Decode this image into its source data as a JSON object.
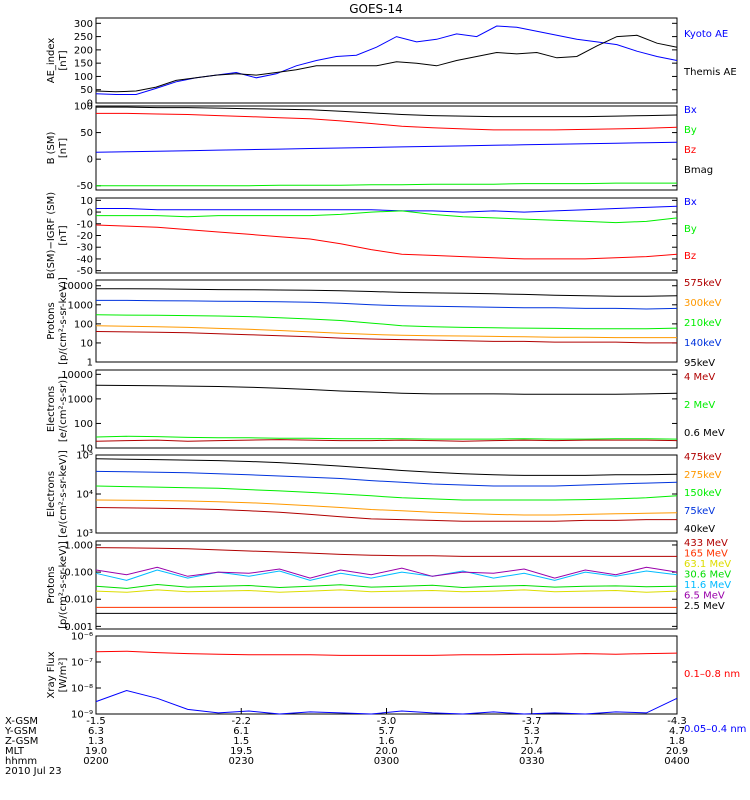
{
  "title": "GOES-14",
  "date_label": "2010 Jul 23",
  "colors": {
    "black": "#000000",
    "blue": "#0000ff",
    "red": "#ff0000",
    "green": "#00ee00",
    "darkred": "#b00000",
    "orange": "#ff9900",
    "yellow": "#dddd00",
    "lightgreen": "#00dd00",
    "cyan": "#00bbff",
    "purple": "#9900aa",
    "darkblue": "#0033dd"
  },
  "chart_data": [
    {
      "type": "line",
      "ylabel": "AE_index",
      "yunit": "[nT]",
      "ylim": [
        0,
        320
      ],
      "scale": "linear",
      "yticks": [
        0,
        50,
        100,
        150,
        200,
        250,
        300
      ],
      "yticklabels": [
        "0",
        "50",
        "100",
        "150",
        "200",
        "250",
        "300"
      ],
      "series": [
        {
          "name": "Kyoto AE",
          "color": "#0000ff",
          "values": [
            35,
            32,
            32,
            55,
            80,
            95,
            105,
            115,
            95,
            110,
            140,
            160,
            175,
            180,
            210,
            250,
            230,
            240,
            260,
            250,
            290,
            285,
            270,
            255,
            240,
            230,
            220,
            195,
            175,
            160
          ]
        },
        {
          "name": "Themis AE",
          "color": "#000000",
          "values": [
            45,
            42,
            45,
            60,
            85,
            95,
            105,
            110,
            105,
            115,
            125,
            140,
            140,
            140,
            140,
            155,
            150,
            140,
            160,
            175,
            190,
            185,
            190,
            170,
            175,
            215,
            250,
            255,
            225,
            210
          ]
        }
      ]
    },
    {
      "type": "line",
      "ylabel": "B (SM)",
      "yunit": "[nT]",
      "ylim": [
        -58,
        100
      ],
      "scale": "linear",
      "yticks": [
        -50,
        0,
        50,
        100
      ],
      "yticklabels": [
        "-50",
        "0",
        "50",
        "100"
      ],
      "series": [
        {
          "name": "Bx",
          "color": "#0000ff",
          "values": [
            13,
            14,
            15,
            16,
            17,
            18,
            19,
            20,
            21,
            22,
            23,
            24,
            25,
            26,
            27,
            28,
            29,
            30,
            31,
            32
          ]
        },
        {
          "name": "By",
          "color": "#00ee00",
          "values": [
            -50,
            -50,
            -50,
            -50,
            -50,
            -50,
            -49,
            -49,
            -49,
            -48,
            -48,
            -47,
            -47,
            -47,
            -46,
            -46,
            -46,
            -45,
            -45,
            -45
          ]
        },
        {
          "name": "Bz",
          "color": "#ff0000",
          "values": [
            86,
            86,
            85,
            84,
            82,
            80,
            78,
            76,
            72,
            67,
            62,
            59,
            57,
            55,
            55,
            55,
            56,
            57,
            58,
            60
          ]
        },
        {
          "name": "Bmag",
          "color": "#000000",
          "values": [
            98,
            98,
            97,
            97,
            96,
            95,
            94,
            93,
            90,
            87,
            84,
            82,
            81,
            80,
            80,
            80,
            80,
            81,
            82,
            83
          ]
        }
      ]
    },
    {
      "type": "line",
      "ylabel": "B(SM)−IGRF (SM)",
      "yunit": "[nT]",
      "ylim": [
        -52,
        12
      ],
      "scale": "linear",
      "yticks": [
        -50,
        -40,
        -30,
        -20,
        -10,
        0,
        10
      ],
      "yticklabels": [
        "-50",
        "-40",
        "-30",
        "-20",
        "-10",
        "0",
        "10"
      ],
      "series": [
        {
          "name": "Bx",
          "color": "#0000ff",
          "values": [
            3,
            3,
            2,
            2,
            2,
            2,
            2,
            2,
            2,
            2,
            1,
            1,
            0,
            1,
            0,
            1,
            2,
            3,
            4,
            5
          ]
        },
        {
          "name": "By",
          "color": "#00ee00",
          "values": [
            -3,
            -3,
            -3,
            -4,
            -3,
            -3,
            -3,
            -3,
            -2,
            0,
            1,
            -2,
            -4,
            -5,
            -6,
            -7,
            -8,
            -9,
            -8,
            -5
          ]
        },
        {
          "name": "Bz",
          "color": "#ff0000",
          "values": [
            -11,
            -12,
            -13,
            -15,
            -17,
            -19,
            -21,
            -23,
            -27,
            -32,
            -36,
            -37,
            -38,
            -39,
            -40,
            -40,
            -40,
            -39,
            -38,
            -36
          ]
        }
      ]
    },
    {
      "type": "line",
      "ylabel": "Protons",
      "yunit": "[p/(cm²-s-sr-keV)]",
      "ylim": [
        1,
        20000
      ],
      "scale": "log",
      "yticks": [
        1,
        10,
        100,
        1000,
        10000
      ],
      "yticklabels": [
        "1",
        "10",
        "100",
        "1000",
        "10000"
      ],
      "series": [
        {
          "name": "575keV",
          "color": "#b00000",
          "values": [
            40,
            38,
            36,
            34,
            30,
            27,
            24,
            21,
            18,
            16,
            15,
            14,
            13,
            12,
            12,
            11,
            11,
            11,
            10,
            10
          ]
        },
        {
          "name": "300keV",
          "color": "#ff9900",
          "values": [
            80,
            75,
            70,
            65,
            58,
            52,
            45,
            38,
            32,
            28,
            25,
            24,
            23,
            22,
            21,
            20,
            20,
            19,
            19,
            19
          ]
        },
        {
          "name": "210keV",
          "color": "#00ee00",
          "values": [
            300,
            290,
            280,
            270,
            260,
            240,
            210,
            180,
            150,
            110,
            80,
            70,
            65,
            62,
            60,
            58,
            56,
            55,
            55,
            60
          ]
        },
        {
          "name": "140keV",
          "color": "#0033dd",
          "values": [
            1700,
            1700,
            1650,
            1600,
            1550,
            1500,
            1450,
            1350,
            1200,
            1000,
            900,
            850,
            800,
            750,
            700,
            700,
            650,
            650,
            600,
            650
          ]
        },
        {
          "name": "95keV",
          "color": "#000000",
          "values": [
            7000,
            7000,
            6800,
            6500,
            6300,
            6200,
            6000,
            5800,
            5500,
            5000,
            4500,
            4200,
            4000,
            3800,
            3500,
            3200,
            3000,
            2800,
            2800,
            3000
          ]
        }
      ]
    },
    {
      "type": "line",
      "ylabel": "Electrons",
      "yunit": "[e/(cm²-s-sr)]",
      "ylim": [
        10,
        15000
      ],
      "scale": "log",
      "yticks": [
        10,
        100,
        1000,
        10000
      ],
      "yticklabels": [
        "10",
        "100",
        "1000",
        "10000"
      ],
      "series": [
        {
          "name": "4 MeV",
          "color": "#b00000",
          "values": [
            19,
            20,
            21,
            19,
            20,
            21,
            22,
            21,
            20,
            20,
            21,
            20,
            19,
            20,
            21,
            20,
            21,
            21,
            21,
            20
          ]
        },
        {
          "name": "2 MeV",
          "color": "#00ee00",
          "values": [
            28,
            30,
            29,
            27,
            26,
            26,
            25,
            25,
            24,
            24,
            24,
            23,
            23,
            23,
            24,
            23,
            23,
            24,
            24,
            23
          ]
        },
        {
          "name": "0.6 MeV",
          "color": "#000000",
          "values": [
            3600,
            3500,
            3400,
            3300,
            3200,
            3000,
            2700,
            2400,
            2100,
            1900,
            1700,
            1600,
            1600,
            1600,
            1550,
            1550,
            1550,
            1550,
            1600,
            1700
          ]
        }
      ]
    },
    {
      "type": "line",
      "ylabel": "Electrons",
      "yunit": "[e/(cm²-s-sr-keV)]",
      "ylim": [
        1000,
        100000
      ],
      "scale": "log",
      "yticks": [
        1000,
        10000,
        100000
      ],
      "yticklabels": [
        "10³",
        "10⁴",
        "10⁵"
      ],
      "series": [
        {
          "name": "475keV",
          "color": "#b00000",
          "values": [
            4500,
            4400,
            4300,
            4200,
            4000,
            3700,
            3400,
            3000,
            2600,
            2300,
            2200,
            2100,
            2000,
            2000,
            2000,
            2000,
            2100,
            2100,
            2200,
            2200
          ]
        },
        {
          "name": "275keV",
          "color": "#ff9900",
          "values": [
            7000,
            6900,
            6800,
            6600,
            6300,
            6000,
            5500,
            5000,
            4500,
            4000,
            3700,
            3400,
            3200,
            3000,
            2900,
            2900,
            3000,
            3100,
            3200,
            3300
          ]
        },
        {
          "name": "150keV",
          "color": "#00ee00",
          "values": [
            16000,
            15500,
            15000,
            14500,
            14000,
            13000,
            12000,
            11000,
            10000,
            9000,
            8000,
            7500,
            7000,
            7000,
            7000,
            7000,
            7200,
            7500,
            8000,
            9000
          ]
        },
        {
          "name": "75keV",
          "color": "#0033dd",
          "values": [
            38000,
            37000,
            36000,
            35000,
            33000,
            31000,
            29000,
            27000,
            25000,
            22000,
            20000,
            18000,
            17000,
            16000,
            16000,
            16000,
            17000,
            18000,
            19000,
            20000
          ]
        },
        {
          "name": "40keV",
          "color": "#000000",
          "values": [
            80000,
            78000,
            76000,
            74000,
            72000,
            68000,
            64000,
            58000,
            52000,
            46000,
            40000,
            36000,
            33000,
            31000,
            30000,
            30000,
            30000,
            31000,
            31000,
            32000
          ]
        }
      ]
    },
    {
      "type": "line",
      "ylabel": "Protons",
      "yunit": "[p/(cm²-s-sr-keV)]",
      "ylim": [
        0.0008,
        1.4
      ],
      "scale": "log",
      "yticks": [
        0.001,
        0.01,
        0.1,
        1
      ],
      "yticklabels": [
        "0.001",
        "0.010",
        "0.100",
        "1.000"
      ],
      "series": [
        {
          "name": "433 MeV",
          "color": "#b00000",
          "values": [
            0.8,
            0.78,
            0.76,
            0.72,
            0.66,
            0.6,
            0.55,
            0.5,
            0.45,
            0.42,
            0.4,
            0.4,
            0.38,
            0.38,
            0.38,
            0.38,
            0.38,
            0.38,
            0.38,
            0.38
          ]
        },
        {
          "name": "165 MeV",
          "color": "#ff3300",
          "values": [
            0.005,
            0.005,
            0.005,
            0.005,
            0.005,
            0.005,
            0.005,
            0.005,
            0.005,
            0.005,
            0.005,
            0.005,
            0.005,
            0.005,
            0.005,
            0.005,
            0.005,
            0.005,
            0.005,
            0.005
          ]
        },
        {
          "name": "63.1 MeV",
          "color": "#dddd00",
          "values": [
            0.02,
            0.018,
            0.022,
            0.019,
            0.02,
            0.021,
            0.018,
            0.02,
            0.022,
            0.019,
            0.02,
            0.021,
            0.019,
            0.02,
            0.022,
            0.019,
            0.02,
            0.021,
            0.018,
            0.02
          ]
        },
        {
          "name": "30.6 MeV",
          "color": "#00dd00",
          "values": [
            0.03,
            0.025,
            0.035,
            0.028,
            0.03,
            0.032,
            0.027,
            0.03,
            0.034,
            0.028,
            0.03,
            0.033,
            0.027,
            0.03,
            0.032,
            0.028,
            0.03,
            0.031,
            0.029,
            0.03
          ]
        },
        {
          "name": "11.6 MeV",
          "color": "#00bbff",
          "values": [
            0.09,
            0.05,
            0.12,
            0.06,
            0.1,
            0.07,
            0.11,
            0.05,
            0.09,
            0.06,
            0.1,
            0.07,
            0.11,
            0.06,
            0.09,
            0.05,
            0.1,
            0.07,
            0.11,
            0.08
          ]
        },
        {
          "name": "6.5 MeV",
          "color": "#9900aa",
          "values": [
            0.12,
            0.08,
            0.15,
            0.07,
            0.1,
            0.09,
            0.13,
            0.06,
            0.12,
            0.08,
            0.14,
            0.07,
            0.1,
            0.09,
            0.13,
            0.06,
            0.12,
            0.08,
            0.15,
            0.1
          ]
        },
        {
          "name": "2.5 MeV",
          "color": "#000000",
          "values": [
            0.003,
            0.003,
            0.003,
            0.003,
            0.003,
            0.003,
            0.003,
            0.003,
            0.003,
            0.003,
            0.003,
            0.003,
            0.003,
            0.003,
            0.003,
            0.003,
            0.003,
            0.003,
            0.003,
            0.003
          ]
        }
      ]
    },
    {
      "type": "line",
      "ylabel": "Xray Flux",
      "yunit": "[W/m²]",
      "ylim": [
        1e-09,
        1e-06
      ],
      "scale": "log",
      "yticks": [
        1e-09,
        1e-08,
        1e-07,
        1e-06
      ],
      "yticklabels": [
        "10⁻⁹",
        "10⁻⁸",
        "10⁻⁷",
        "10⁻⁶"
      ],
      "series": [
        {
          "name": "0.1–0.8 nm",
          "color": "#ff0000",
          "values": [
            2.5e-07,
            2.6e-07,
            2.3e-07,
            2.1e-07,
            2e-07,
            1.9e-07,
            1.9e-07,
            1.9e-07,
            1.8e-07,
            1.8e-07,
            1.8e-07,
            1.8e-07,
            1.9e-07,
            1.9e-07,
            2e-07,
            2e-07,
            2.1e-07,
            2e-07,
            2.1e-07,
            2.2e-07
          ]
        },
        {
          "name": "0.05–0.4 nm",
          "color": "#0000ff",
          "values": [
            3e-09,
            8e-09,
            4e-09,
            1.5e-09,
            1.1e-09,
            1.3e-09,
            1e-09,
            1.2e-09,
            1.1e-09,
            1e-09,
            1.3e-09,
            1.1e-09,
            1e-09,
            1.2e-09,
            1e-09,
            1.1e-09,
            1e-09,
            1.2e-09,
            1.1e-09,
            4e-09
          ]
        }
      ]
    }
  ],
  "xaxis": {
    "row_labels": [
      "X-GSM",
      "Y-GSM",
      "Z-GSM",
      "MLT",
      "hhmm"
    ],
    "columns": [
      [
        "-1.5",
        "6.3",
        "1.3",
        "19.0",
        "0200"
      ],
      [
        "-2.2",
        "6.1",
        "1.5",
        "19.5",
        "0230"
      ],
      [
        "-3.0",
        "5.7",
        "1.6",
        "20.0",
        "0300"
      ],
      [
        "-3.7",
        "5.3",
        "1.7",
        "20.4",
        "0330"
      ],
      [
        "-4.3",
        "4.7",
        "1.8",
        "20.9",
        "0400"
      ]
    ]
  }
}
